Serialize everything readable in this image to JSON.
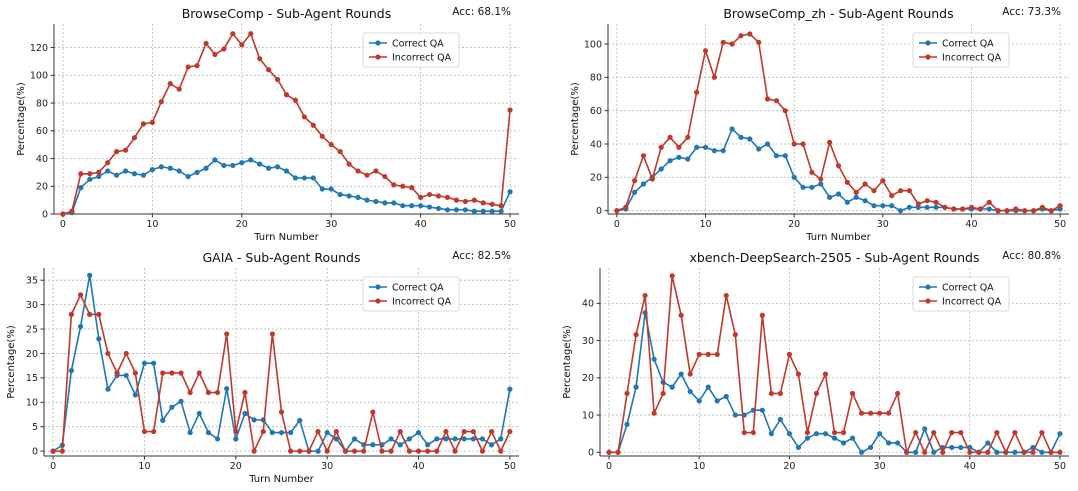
{
  "chart_data": [
    {
      "type": "line",
      "title": "BrowseComp - Sub-Agent Rounds",
      "accuracy_label": "Acc: 68.1%",
      "xlabel": "Turn Number",
      "ylabel": "Percentage(%)",
      "xlim": [
        -1,
        51
      ],
      "ylim": [
        0,
        137
      ],
      "xticks": [
        0,
        10,
        20,
        30,
        40,
        50
      ],
      "yticks": [
        0,
        20,
        40,
        60,
        80,
        100,
        120
      ],
      "grid": true,
      "legend_position": "top-right",
      "x": [
        0,
        1,
        2,
        3,
        4,
        5,
        6,
        7,
        8,
        9,
        10,
        11,
        12,
        13,
        14,
        15,
        16,
        17,
        18,
        19,
        20,
        21,
        22,
        23,
        24,
        25,
        26,
        27,
        28,
        29,
        30,
        31,
        32,
        33,
        34,
        35,
        36,
        37,
        38,
        39,
        40,
        41,
        42,
        43,
        44,
        45,
        46,
        47,
        48,
        49,
        50
      ],
      "series": [
        {
          "name": "Correct QA",
          "color": "#1f77b4",
          "values": [
            0,
            1,
            19,
            25,
            27,
            31,
            28,
            31,
            29,
            28,
            32,
            34,
            33,
            31,
            27,
            30,
            33,
            39,
            35,
            35,
            37,
            39,
            36,
            33,
            34,
            31,
            26,
            26,
            26,
            18,
            18,
            14,
            13,
            12,
            10,
            9,
            8,
            8,
            6,
            6,
            6,
            5,
            4,
            3,
            3,
            3,
            2,
            2,
            2,
            2,
            16
          ]
        },
        {
          "name": "Incorrect QA",
          "color": "#c0392b",
          "values": [
            0,
            2,
            29,
            29,
            30,
            37,
            45,
            46,
            55,
            65,
            66,
            81,
            94,
            90,
            106,
            107,
            123,
            115,
            119,
            130,
            122,
            130,
            112,
            104,
            97,
            86,
            82,
            70,
            64,
            56,
            50,
            45,
            36,
            31,
            28,
            31,
            27,
            21,
            20,
            19,
            12,
            14,
            13,
            12,
            10,
            9,
            10,
            8,
            7,
            6,
            75
          ]
        }
      ]
    },
    {
      "type": "line",
      "title": "BrowseComp_zh - Sub-Agent Rounds",
      "accuracy_label": "Acc: 73.3%",
      "xlabel": "Turn Number",
      "ylabel": "Percentage(%)",
      "xlim": [
        -1,
        51
      ],
      "ylim": [
        -2,
        112
      ],
      "xticks": [
        0,
        10,
        20,
        30,
        40,
        50
      ],
      "yticks": [
        0,
        20,
        40,
        60,
        80,
        100
      ],
      "grid": true,
      "legend_position": "top-right",
      "x": [
        0,
        1,
        2,
        3,
        4,
        5,
        6,
        7,
        8,
        9,
        10,
        11,
        12,
        13,
        14,
        15,
        16,
        17,
        18,
        19,
        20,
        21,
        22,
        23,
        24,
        25,
        26,
        27,
        28,
        29,
        30,
        31,
        32,
        33,
        34,
        35,
        36,
        37,
        38,
        39,
        40,
        41,
        42,
        43,
        44,
        45,
        46,
        47,
        48,
        49,
        50
      ],
      "series": [
        {
          "name": "Correct QA",
          "color": "#1f77b4",
          "values": [
            0,
            1,
            11,
            16,
            20,
            25,
            30,
            32,
            31,
            38,
            38,
            36,
            36,
            49,
            44,
            43,
            37,
            40,
            33,
            33,
            20,
            14,
            14,
            16,
            8,
            10,
            5,
            8,
            6,
            3,
            3,
            3,
            0,
            2,
            2,
            2,
            2,
            2,
            1,
            1,
            1,
            1,
            1,
            0,
            0,
            0,
            0,
            0,
            1,
            0,
            1
          ]
        },
        {
          "name": "Incorrect QA",
          "color": "#c0392b",
          "values": [
            0,
            2,
            18,
            33,
            19,
            38,
            44,
            38,
            44,
            71,
            96,
            80,
            101,
            100,
            105,
            106,
            101,
            67,
            66,
            60,
            40,
            40,
            23,
            19,
            41,
            27,
            17,
            11,
            16,
            12,
            18,
            9,
            12,
            12,
            4,
            6,
            5,
            2,
            1,
            1,
            2,
            1,
            5,
            0,
            0,
            1,
            0,
            0,
            2,
            0,
            3
          ]
        }
      ]
    },
    {
      "type": "line",
      "title": "GAIA - Sub-Agent Rounds",
      "accuracy_label": "Acc: 82.5%",
      "xlabel": "Turn Number",
      "ylabel": "Percentage(%)",
      "xlim": [
        -1,
        51
      ],
      "ylim": [
        -1,
        37.5
      ],
      "xticks": [
        0,
        10,
        20,
        30,
        40,
        50
      ],
      "yticks": [
        0,
        5,
        10,
        15,
        20,
        25,
        30,
        35
      ],
      "grid": true,
      "legend_position": "top-right",
      "x": [
        0,
        1,
        2,
        3,
        4,
        5,
        6,
        7,
        8,
        9,
        10,
        11,
        12,
        13,
        14,
        15,
        16,
        17,
        18,
        19,
        20,
        21,
        22,
        23,
        24,
        25,
        26,
        27,
        28,
        29,
        30,
        31,
        32,
        33,
        34,
        35,
        36,
        37,
        38,
        39,
        40,
        41,
        42,
        43,
        44,
        45,
        46,
        47,
        48,
        49,
        50
      ],
      "series": [
        {
          "name": "Correct QA",
          "color": "#1f77b4",
          "values": [
            0,
            1.2,
            16.5,
            25.5,
            36,
            23,
            12.7,
            15.5,
            15.5,
            11.5,
            18,
            18,
            6.3,
            9,
            10.2,
            3.8,
            7.7,
            3.8,
            2.5,
            12.8,
            2.5,
            7.7,
            6.4,
            6.4,
            3.8,
            3.8,
            3.8,
            6.3,
            0,
            0,
            3.8,
            2.5,
            0,
            2.5,
            1.3,
            1.3,
            1.3,
            2.5,
            1.3,
            2.5,
            3.8,
            1.3,
            2.5,
            2.5,
            2.5,
            2.5,
            2.5,
            2.5,
            1.3,
            2.5,
            12.7
          ]
        },
        {
          "name": "Incorrect QA",
          "color": "#c0392b",
          "values": [
            0,
            0,
            28,
            32,
            28,
            28,
            20,
            16,
            20,
            16,
            4,
            4,
            16,
            16,
            16,
            12,
            16,
            12,
            12,
            24,
            4,
            12,
            0,
            4,
            24,
            8,
            0,
            0,
            0,
            4,
            0,
            4,
            0,
            0,
            0,
            8,
            0,
            0,
            4,
            0,
            0,
            0,
            0,
            4,
            0,
            4,
            4,
            0,
            4,
            0,
            4
          ]
        }
      ]
    },
    {
      "type": "line",
      "title": "xbench-DeepSearch-2505 - Sub-Agent Rounds",
      "accuracy_label": "Acc: 80.8%",
      "xlabel": "",
      "ylabel": "Percentage(%)",
      "xlim": [
        -1,
        51
      ],
      "ylim": [
        -1,
        49.5
      ],
      "xticks": [
        0,
        10,
        20,
        30,
        40,
        50
      ],
      "yticks": [
        0,
        10,
        20,
        30,
        40
      ],
      "grid": true,
      "legend_position": "top-right",
      "x": [
        0,
        1,
        2,
        3,
        4,
        5,
        6,
        7,
        8,
        9,
        10,
        11,
        12,
        13,
        14,
        15,
        16,
        17,
        18,
        19,
        20,
        21,
        22,
        23,
        24,
        25,
        26,
        27,
        28,
        29,
        30,
        31,
        32,
        33,
        34,
        35,
        36,
        37,
        38,
        39,
        40,
        41,
        42,
        43,
        44,
        45,
        46,
        47,
        48,
        49,
        50
      ],
      "series": [
        {
          "name": "Correct QA",
          "color": "#1f77b4",
          "values": [
            0,
            0,
            7.5,
            17.5,
            37.5,
            25,
            18.8,
            17.5,
            21,
            16.3,
            13.8,
            17.5,
            13.8,
            15,
            10,
            10,
            11.3,
            11.3,
            5,
            8.8,
            5,
            1.3,
            3.8,
            5,
            5,
            3.8,
            2.5,
            3.8,
            0,
            1.3,
            5,
            2.5,
            2.5,
            0,
            0,
            6.3,
            0,
            1.3,
            1.3,
            1.3,
            1.3,
            0,
            2.5,
            0,
            0,
            0,
            0,
            1.3,
            0,
            0,
            5
          ]
        },
        {
          "name": "Incorrect QA",
          "color": "#c0392b",
          "values": [
            0,
            0,
            15.8,
            31.6,
            42.1,
            10.5,
            15.8,
            47.4,
            36.8,
            21,
            26.3,
            26.3,
            26.3,
            42.1,
            31.6,
            5.3,
            5.3,
            36.8,
            15.8,
            15.8,
            26.3,
            21,
            5.3,
            15.8,
            21,
            5.3,
            5.3,
            15.8,
            10.5,
            10.5,
            10.5,
            10.5,
            15.8,
            0,
            5.3,
            0,
            5.3,
            0,
            5.3,
            5.3,
            0,
            0,
            0,
            5.3,
            0,
            5.3,
            0,
            0,
            5.3,
            0,
            0
          ]
        }
      ]
    }
  ]
}
